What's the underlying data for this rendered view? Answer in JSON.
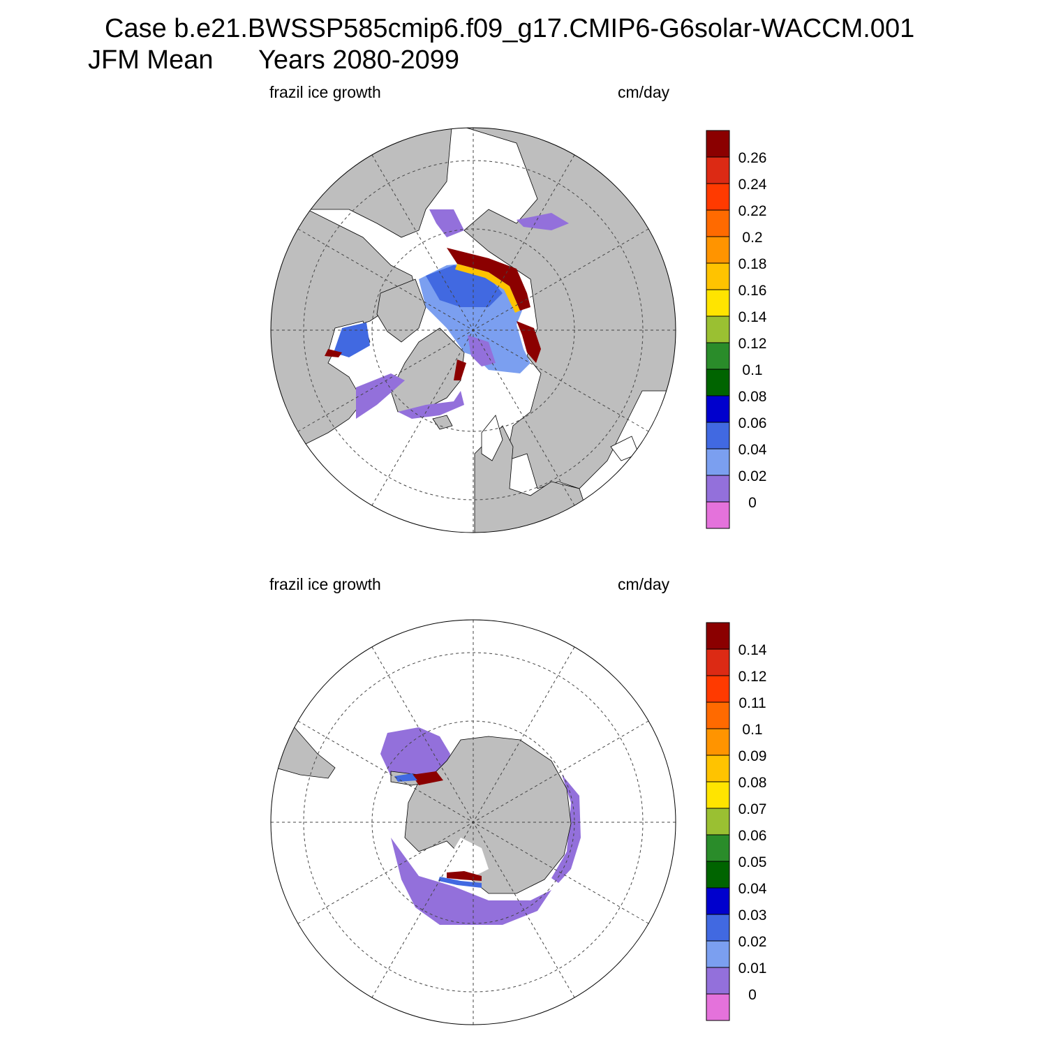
{
  "header": {
    "case_line": "Case b.e21.BWSSP585cmip6.f09_g17.CMIP6-G6solar-WACCM.001",
    "period_label": "JFM Mean",
    "years_label": "Years 2080-2099"
  },
  "panels": [
    {
      "hemisphere": "north",
      "left_title": "frazil ice growth",
      "right_title": "cm/day",
      "colorbar": {
        "labels": [
          "0.26",
          "0.24",
          "0.22",
          "0.2",
          "0.18",
          "0.16",
          "0.14",
          "0.12",
          "0.1",
          "0.08",
          "0.06",
          "0.04",
          "0.02",
          "0"
        ]
      }
    },
    {
      "hemisphere": "south",
      "left_title": "frazil ice growth",
      "right_title": "cm/day",
      "colorbar": {
        "labels": [
          "0.14",
          "0.12",
          "0.11",
          "0.1",
          "0.09",
          "0.08",
          "0.07",
          "0.06",
          "0.05",
          "0.04",
          "0.03",
          "0.02",
          "0.01",
          "0"
        ]
      }
    }
  ],
  "colors": {
    "palette_top_to_bottom": [
      "#8b0000",
      "#dc2a14",
      "#ff3a00",
      "#ff6a00",
      "#ff9400",
      "#ffc300",
      "#ffe400",
      "#9ac032",
      "#2a8c2a",
      "#006400",
      "#0000cd",
      "#4169e1",
      "#7b9ff0",
      "#9370db",
      "#e472db"
    ],
    "land": "#bebebe",
    "ocean": "#ffffff"
  }
}
